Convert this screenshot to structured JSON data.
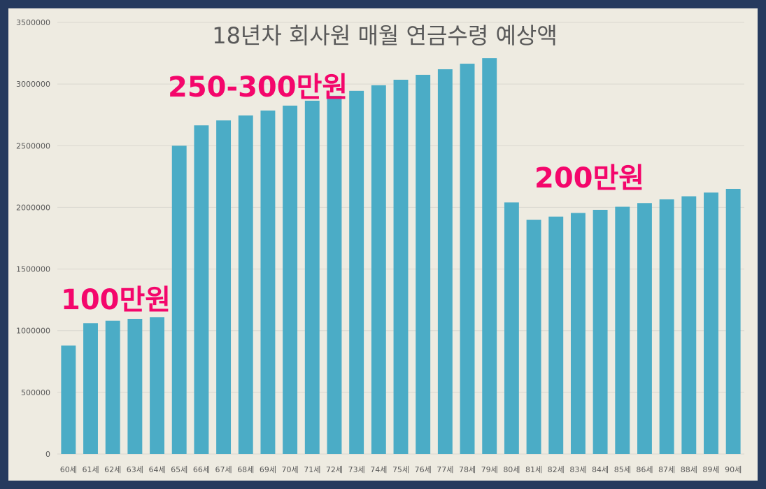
{
  "chart_data": {
    "type": "bar",
    "title": "18년차 회사원 매월 연금수령 예상액",
    "xlabel": "",
    "ylabel": "",
    "ylim": [
      0,
      3500000
    ],
    "yticks": [
      0,
      500000,
      1000000,
      1500000,
      2000000,
      2500000,
      3000000,
      3500000
    ],
    "ytick_labels": [
      "0",
      "500000",
      "1000000",
      "1500000",
      "2000000",
      "2500000",
      "3000000",
      "3500000"
    ],
    "grid": true,
    "bar_color": "#4bacc6",
    "categories": [
      "60세",
      "61세",
      "62세",
      "63세",
      "64세",
      "65세",
      "66세",
      "67세",
      "68세",
      "69세",
      "70세",
      "71세",
      "72세",
      "73세",
      "74세",
      "75세",
      "76세",
      "77세",
      "78세",
      "79세",
      "80세",
      "81세",
      "82세",
      "83세",
      "84세",
      "85세",
      "86세",
      "87세",
      "88세",
      "89세",
      "90세"
    ],
    "values": [
      880000,
      1060000,
      1080000,
      1095000,
      1110000,
      2500000,
      2665000,
      2705000,
      2745000,
      2785000,
      2825000,
      2865000,
      2905000,
      2945000,
      2990000,
      3035000,
      3075000,
      3120000,
      3165000,
      3210000,
      2040000,
      1900000,
      1925000,
      1955000,
      1980000,
      2005000,
      2035000,
      2065000,
      2090000,
      2120000,
      2150000
    ],
    "annotations": [
      {
        "id": "a1",
        "text": "100만원",
        "color": "#f4066b"
      },
      {
        "id": "a2",
        "text": "250-300만원",
        "color": "#f4066b"
      },
      {
        "id": "a3",
        "text": "200만원",
        "color": "#f4066b"
      }
    ]
  }
}
